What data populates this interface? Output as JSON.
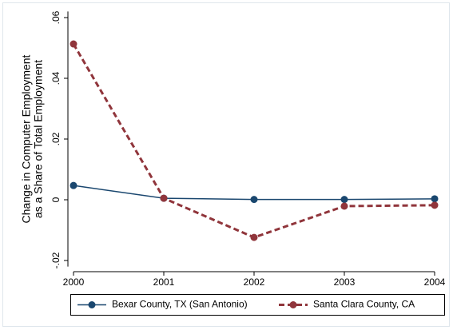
{
  "chart_data": {
    "type": "line",
    "y_label": [
      "Change in Computer Employment",
      "as a Share of Total Employment"
    ],
    "x": [
      2000,
      2001,
      2002,
      2003,
      2004
    ],
    "xlim": [
      2000,
      2004
    ],
    "xticks": [
      2000,
      2001,
      2002,
      2003,
      2004
    ],
    "ylim": [
      -0.022,
      0.062
    ],
    "yticks": [
      {
        "value": -0.02,
        "label": "-.02"
      },
      0,
      {
        "value": 0.02,
        "label": ".02"
      },
      {
        "value": 0.04,
        "label": ".04"
      },
      {
        "value": 0.06,
        "label": ".06"
      }
    ],
    "series": [
      {
        "name": "Bexar County, TX (San Antonio)",
        "color": "#1a476f",
        "dashed": false,
        "values": [
          0.0047,
          0.0005,
          0.0001,
          0.0001,
          0.0003
        ]
      },
      {
        "name": "Santa Clara County, CA",
        "color": "#90353b",
        "dashed": true,
        "values": [
          0.0513,
          0.0005,
          -0.0124,
          -0.0021,
          -0.0018
        ]
      }
    ],
    "legend": "bottom"
  }
}
